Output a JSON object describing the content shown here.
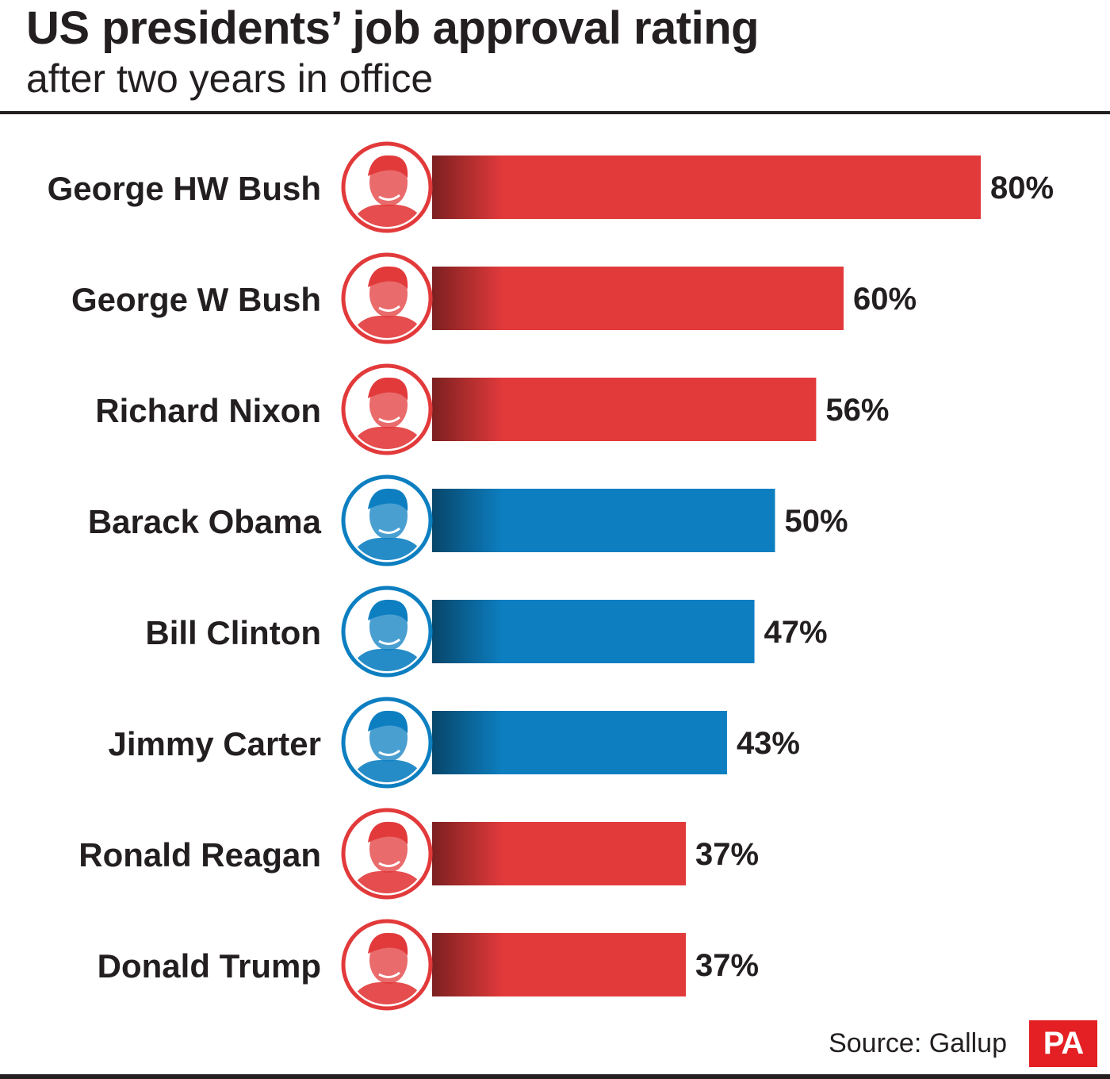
{
  "chart_data": {
    "type": "bar",
    "orientation": "horizontal",
    "title": "US presidents’ job approval rating",
    "subtitle": "after two years in office",
    "categories": [
      "George HW Bush",
      "George W Bush",
      "Richard Nixon",
      "Barack Obama",
      "Bill Clinton",
      "Jimmy Carter",
      "Ronald Reagan",
      "Donald Trump"
    ],
    "values": [
      80,
      60,
      56,
      50,
      47,
      43,
      37,
      37
    ],
    "data_labels": [
      "80%",
      "60%",
      "56%",
      "50%",
      "47%",
      "43%",
      "37%",
      "37%"
    ],
    "party": [
      "republican",
      "republican",
      "republican",
      "democrat",
      "democrat",
      "democrat",
      "republican",
      "republican"
    ],
    "xlim": [
      0,
      100
    ],
    "grid": false,
    "legend": "none"
  },
  "colors": {
    "republican": "#e23a3b",
    "democrat": "#0d7fc1",
    "text": "#231f20"
  },
  "source": "Source: Gallup",
  "logo": "PA"
}
